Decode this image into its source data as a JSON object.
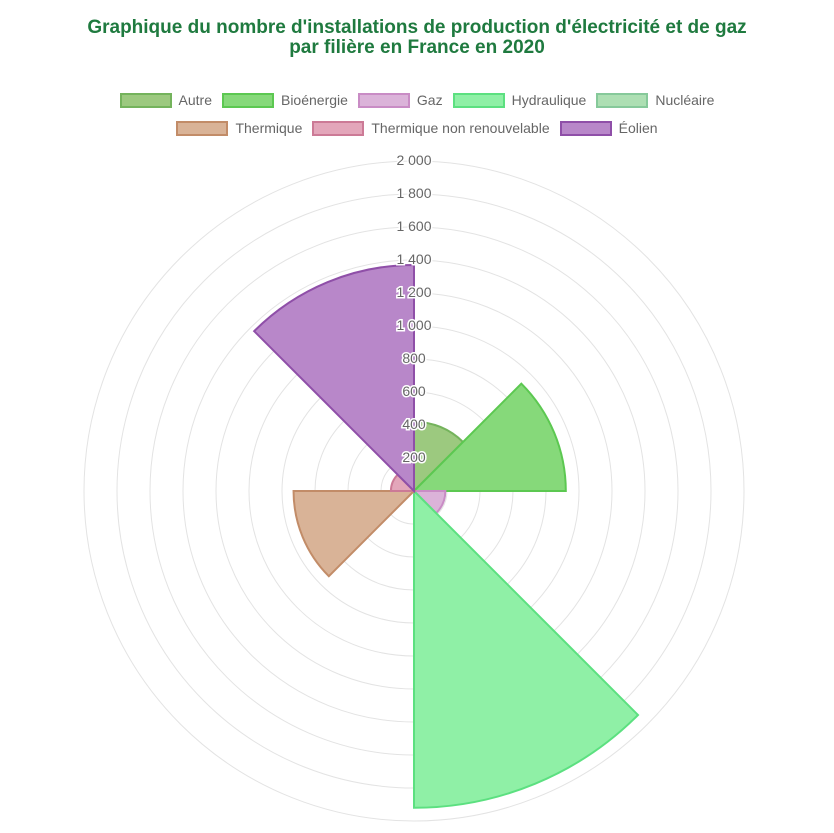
{
  "chart_data": {
    "type": "polarArea",
    "title": [
      "Graphique du nombre d'installations de production d'électricité et de gaz",
      "par filière en France en 2020"
    ],
    "categories": [
      "Autre",
      "Bioénergie",
      "Gaz",
      "Hydraulique",
      "Nucléaire",
      "Thermique",
      "Thermique non renouvelable",
      "Éolien"
    ],
    "values": [
      420,
      920,
      190,
      1920,
      10,
      730,
      140,
      1370
    ],
    "colors": {
      "fill": [
        "#9cc97f",
        "#86d97a",
        "#dbb3d9",
        "#8ff0a6",
        "#addfb3",
        "#d9b397",
        "#e3a6ba",
        "#b887c9"
      ],
      "border": [
        "#74b35c",
        "#5cc851",
        "#c98cc5",
        "#5ce080",
        "#86c99a",
        "#c28c68",
        "#cc7a96",
        "#8f4fa8"
      ]
    },
    "r_axis": {
      "min": 0,
      "max": 2000,
      "ticks": [
        "200",
        "400",
        "600",
        "800",
        "1 000",
        "1 200",
        "1 400",
        "1 600",
        "1 800",
        "2 000"
      ]
    },
    "legend_position": "top",
    "grid": true
  }
}
